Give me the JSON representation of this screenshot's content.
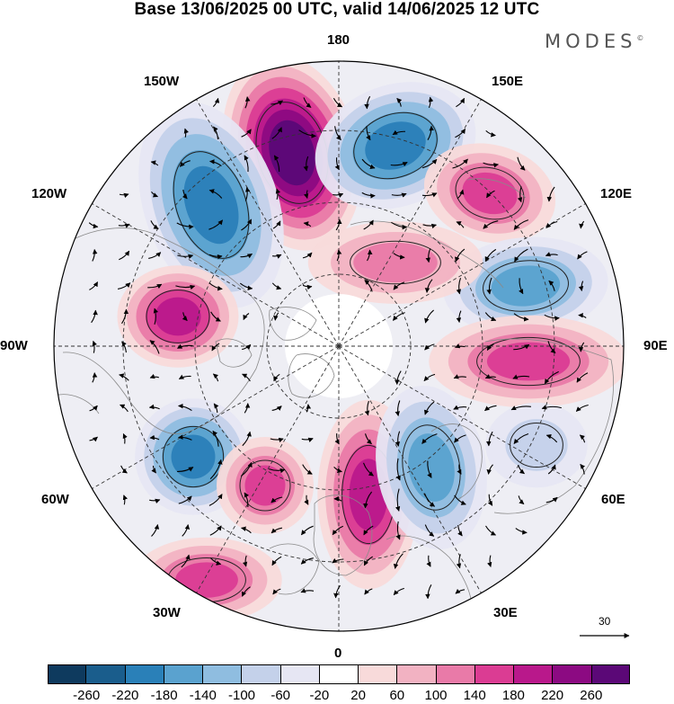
{
  "title": "Base 13/06/2025 00 UTC, valid 14/06/2025 12 UTC",
  "brand": "MODES",
  "brand_mark": "©",
  "longitude_labels": {
    "n180": "180",
    "e150": "150E",
    "e120": "120E",
    "e90": "90E",
    "e60": "60E",
    "e30": "30E",
    "s0": "0",
    "w30": "30W",
    "w60": "60W",
    "w90": "90W",
    "w120": "120W",
    "w150": "150W"
  },
  "reference_vector": {
    "label": "30"
  },
  "colorbar": {
    "colors": [
      "#0e3a5e",
      "#1a5d8c",
      "#2a80b8",
      "#5aa2cf",
      "#8fbde0",
      "#c4d1ea",
      "#e6e6f3",
      "#ffffff",
      "#f8dada",
      "#f2b2c2",
      "#e97aa8",
      "#db3c93",
      "#b9188b",
      "#8c0a82",
      "#5b0877"
    ],
    "ticks": [
      "-260",
      "-220",
      "-180",
      "-140",
      "-100",
      "-60",
      "-20",
      "20",
      "60",
      "100",
      "140",
      "180",
      "220",
      "260"
    ]
  },
  "anomaly_centers": [
    {
      "sign": "positive",
      "level": 260
    },
    {
      "sign": "negative",
      "level": -220
    },
    {
      "sign": "negative",
      "level": -220
    },
    {
      "sign": "positive",
      "level": 140
    },
    {
      "sign": "negative",
      "level": -180
    },
    {
      "sign": "positive",
      "level": 180
    },
    {
      "sign": "positive",
      "level": 140
    },
    {
      "sign": "negative",
      "level": -100
    },
    {
      "sign": "negative",
      "level": -220
    },
    {
      "sign": "positive",
      "level": 180
    },
    {
      "sign": "negative",
      "level": -180
    },
    {
      "sign": "positive",
      "level": 140
    },
    {
      "sign": "positive",
      "level": 140
    },
    {
      "sign": "positive",
      "level": 100
    }
  ]
}
